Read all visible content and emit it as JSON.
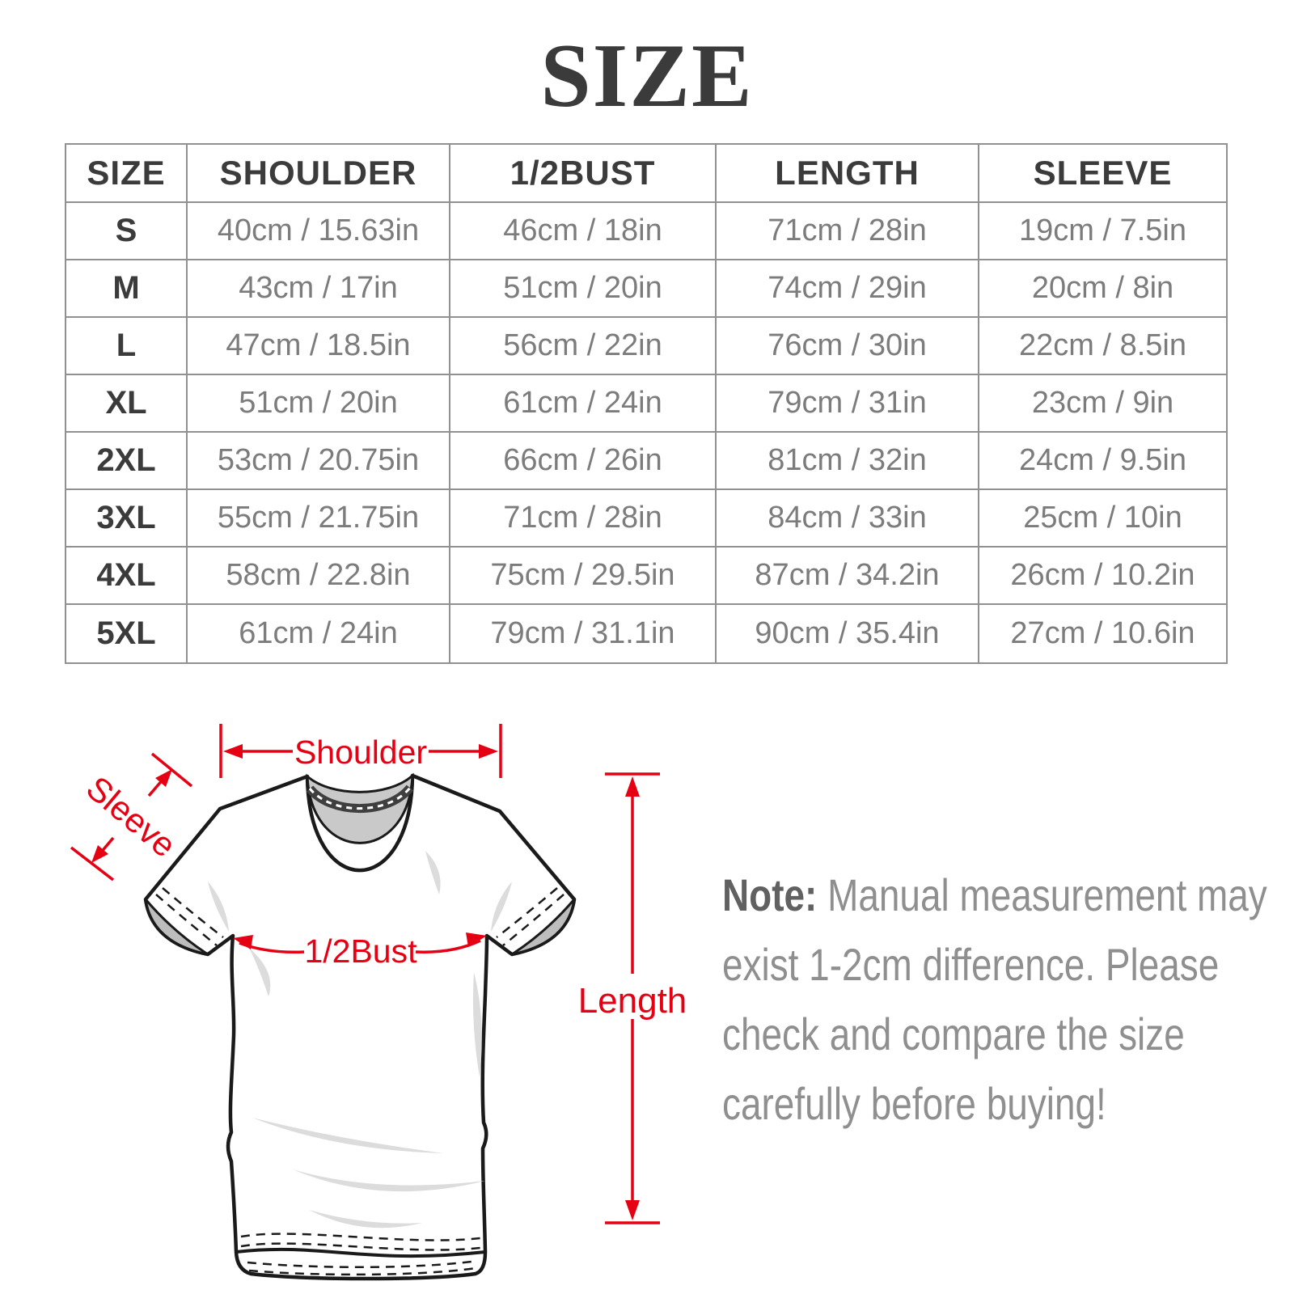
{
  "title": "SIZE",
  "colors": {
    "accent_red": "#e60013",
    "table_border": "#919191",
    "text_dark": "#3b3b3b",
    "text_gray": "#7c7c7c",
    "note_gray": "#8f8f8f",
    "note_label": "#616161"
  },
  "table": {
    "headers": [
      "SIZE",
      "SHOULDER",
      "1/2BUST",
      "LENGTH",
      "SLEEVE"
    ],
    "rows": [
      {
        "size": "S",
        "shoulder": "40cm / 15.63in",
        "bust": "46cm / 18in",
        "length": "71cm / 28in",
        "sleeve": "19cm / 7.5in"
      },
      {
        "size": "M",
        "shoulder": "43cm / 17in",
        "bust": "51cm / 20in",
        "length": "74cm / 29in",
        "sleeve": "20cm / 8in"
      },
      {
        "size": "L",
        "shoulder": "47cm / 18.5in",
        "bust": "56cm / 22in",
        "length": "76cm / 30in",
        "sleeve": "22cm / 8.5in"
      },
      {
        "size": "XL",
        "shoulder": "51cm / 20in",
        "bust": "61cm / 24in",
        "length": "79cm / 31in",
        "sleeve": "23cm / 9in"
      },
      {
        "size": "2XL",
        "shoulder": "53cm / 20.75in",
        "bust": "66cm / 26in",
        "length": "81cm / 32in",
        "sleeve": "24cm / 9.5in"
      },
      {
        "size": "3XL",
        "shoulder": "55cm / 21.75in",
        "bust": "71cm / 28in",
        "length": "84cm / 33in",
        "sleeve": "25cm / 10in"
      },
      {
        "size": "4XL",
        "shoulder": "58cm / 22.8in",
        "bust": "75cm / 29.5in",
        "length": "87cm / 34.2in",
        "sleeve": "26cm / 10.2in"
      },
      {
        "size": "5XL",
        "shoulder": "61cm / 24in",
        "bust": "79cm / 31.1in",
        "length": "90cm / 35.4in",
        "sleeve": "27cm / 10.6in"
      }
    ]
  },
  "diagram": {
    "labels": {
      "shoulder": "Shoulder",
      "sleeve": "Sleeve",
      "bust": "1/2Bust",
      "length": "Length"
    }
  },
  "note": {
    "label": "Note:",
    "lines": [
      "Manual measurement may",
      "exist 1-2cm difference. Please",
      "check and compare the size",
      "carefully before buying!"
    ]
  }
}
